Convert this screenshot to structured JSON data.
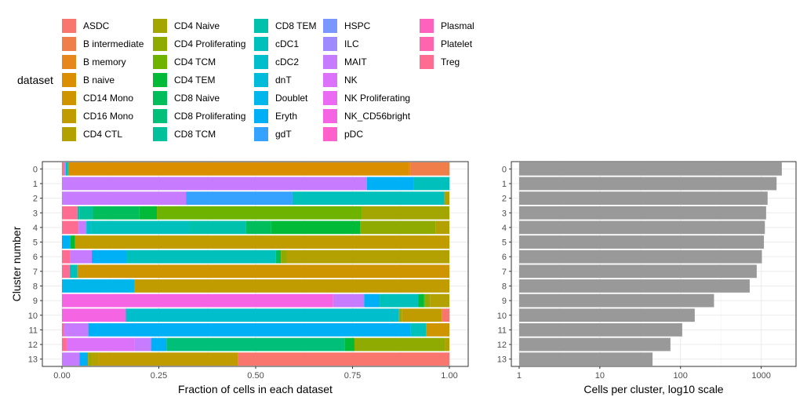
{
  "legend": {
    "title": "dataset",
    "entries": [
      {
        "label": "ASDC",
        "color": "#F8766D"
      },
      {
        "label": "B intermediate",
        "color": "#F07E4A"
      },
      {
        "label": "B memory",
        "color": "#E6861B"
      },
      {
        "label": "B naive",
        "color": "#DB8E00"
      },
      {
        "label": "CD14 Mono",
        "color": "#CF9500"
      },
      {
        "label": "CD16 Mono",
        "color": "#C19C00"
      },
      {
        "label": "CD4 CTL",
        "color": "#B2A100"
      },
      {
        "label": "CD4 Naive",
        "color": "#A3A500"
      },
      {
        "label": "CD4 Proliferating",
        "color": "#8FAA00"
      },
      {
        "label": "CD4 TCM",
        "color": "#6EB300"
      },
      {
        "label": "CD4 TEM",
        "color": "#00BA38"
      },
      {
        "label": "CD8 Naive",
        "color": "#00BD5C"
      },
      {
        "label": "CD8 Proliferating",
        "color": "#00C079"
      },
      {
        "label": "CD8 TCM",
        "color": "#00C19A"
      },
      {
        "label": "CD8 TEM",
        "color": "#00C1AB"
      },
      {
        "label": "cDC1",
        "color": "#00C0BB"
      },
      {
        "label": "cDC2",
        "color": "#00BECB"
      },
      {
        "label": "dnT",
        "color": "#00BBDA"
      },
      {
        "label": "Doublet",
        "color": "#00B6EB"
      },
      {
        "label": "Eryth",
        "color": "#00B0F6"
      },
      {
        "label": "gdT",
        "color": "#35A2FF"
      },
      {
        "label": "HSPC",
        "color": "#7997FF"
      },
      {
        "label": "ILC",
        "color": "#9F8AFF"
      },
      {
        "label": "MAIT",
        "color": "#C77CFF"
      },
      {
        "label": "NK",
        "color": "#DC71FA"
      },
      {
        "label": "NK Proliferating",
        "color": "#EA6AF1"
      },
      {
        "label": "NK_CD56bright",
        "color": "#F564E3"
      },
      {
        "label": "pDC",
        "color": "#FF61CC"
      },
      {
        "label": "Plasmal",
        "color": "#FF62BC"
      },
      {
        "label": "Platelet",
        "color": "#FF65AE"
      },
      {
        "label": "Treg",
        "color": "#FF6C91"
      }
    ]
  },
  "chart_data": [
    {
      "type": "bar",
      "orientation": "horizontal",
      "stacked": true,
      "xlabel": "Fraction of cells in each dataset",
      "ylabel": "Cluster number",
      "xlim": [
        0,
        1
      ],
      "xticks": [
        "0.00",
        "0.25",
        "0.50",
        "0.75",
        "1.00"
      ],
      "categories": [
        "0",
        "1",
        "2",
        "3",
        "4",
        "5",
        "6",
        "7",
        "8",
        "9",
        "10",
        "11",
        "12",
        "13"
      ],
      "grid": true,
      "rows": [
        {
          "cluster": "0",
          "segments": [
            {
              "d": "ASDC",
              "v": 0.004
            },
            {
              "d": "MAIT",
              "v": 0.006
            },
            {
              "d": "cDC1",
              "v": 0.006
            },
            {
              "d": "B naive",
              "v": 0.88
            },
            {
              "d": "B memory",
              "v": 0.004
            },
            {
              "d": "B intermediate",
              "v": 0.1
            }
          ]
        },
        {
          "cluster": "1",
          "segments": [
            {
              "d": "MAIT",
              "v": 0.787
            },
            {
              "d": "Eryth",
              "v": 0.12
            },
            {
              "d": "cDC1",
              "v": 0.093
            }
          ]
        },
        {
          "cluster": "2",
          "segments": [
            {
              "d": "MAIT",
              "v": 0.32
            },
            {
              "d": "gdT",
              "v": 0.275
            },
            {
              "d": "cDC1",
              "v": 0.392
            },
            {
              "d": "CD4 CTL",
              "v": 0.013
            }
          ]
        },
        {
          "cluster": "3",
          "segments": [
            {
              "d": "Treg",
              "v": 0.04
            },
            {
              "d": "CD8 TEM",
              "v": 0.005
            },
            {
              "d": "CD8 TCM",
              "v": 0.035
            },
            {
              "d": "CD8 Naive",
              "v": 0.12
            },
            {
              "d": "CD4 TEM",
              "v": 0.045
            },
            {
              "d": "CD4 TCM",
              "v": 0.53
            },
            {
              "d": "CD4 Naive",
              "v": 0.225
            }
          ]
        },
        {
          "cluster": "4",
          "segments": [
            {
              "d": "Treg",
              "v": 0.043
            },
            {
              "d": "MAIT",
              "v": 0.02
            },
            {
              "d": "cDC2",
              "v": 0.012
            },
            {
              "d": "cDC1",
              "v": 0.255
            },
            {
              "d": "CD8 TEM",
              "v": 0.145
            },
            {
              "d": "CD8 Naive",
              "v": 0.065
            },
            {
              "d": "CD4 TEM",
              "v": 0.23
            },
            {
              "d": "CD4 Proliferating",
              "v": 0.195
            },
            {
              "d": "CD4 CTL",
              "v": 0.035
            }
          ]
        },
        {
          "cluster": "5",
          "segments": [
            {
              "d": "Eryth",
              "v": 0.022
            },
            {
              "d": "CD4 TEM",
              "v": 0.012
            },
            {
              "d": "CD16 Mono",
              "v": 0.966
            }
          ]
        },
        {
          "cluster": "6",
          "segments": [
            {
              "d": "Treg",
              "v": 0.022
            },
            {
              "d": "MAIT",
              "v": 0.055
            },
            {
              "d": "Eryth",
              "v": 0.09
            },
            {
              "d": "cDC1",
              "v": 0.385
            },
            {
              "d": "CD8 Naive",
              "v": 0.013
            },
            {
              "d": "CD4 Proliferating",
              "v": 0.015
            },
            {
              "d": "CD4 CTL",
              "v": 0.42
            }
          ]
        },
        {
          "cluster": "7",
          "segments": [
            {
              "d": "Treg",
              "v": 0.02
            },
            {
              "d": "cDC1",
              "v": 0.02
            },
            {
              "d": "CD14 Mono",
              "v": 0.96
            }
          ]
        },
        {
          "cluster": "8",
          "segments": [
            {
              "d": "Doublet",
              "v": 0.188
            },
            {
              "d": "CD16 Mono",
              "v": 0.812
            }
          ]
        },
        {
          "cluster": "9",
          "segments": [
            {
              "d": "NK_CD56bright",
              "v": 0.7
            },
            {
              "d": "MAIT",
              "v": 0.08
            },
            {
              "d": "Eryth",
              "v": 0.04
            },
            {
              "d": "cDC1",
              "v": 0.1
            },
            {
              "d": "CD4 TEM",
              "v": 0.015
            },
            {
              "d": "CD4 Proliferating",
              "v": 0.015
            },
            {
              "d": "CD4 CTL",
              "v": 0.05
            }
          ]
        },
        {
          "cluster": "10",
          "segments": [
            {
              "d": "NK_CD56bright",
              "v": 0.165
            },
            {
              "d": "cDC2",
              "v": 0.705
            },
            {
              "d": "CD4 Naive",
              "v": 0.008
            },
            {
              "d": "CD16 Mono",
              "v": 0.102
            },
            {
              "d": "ASDC",
              "v": 0.02
            }
          ]
        },
        {
          "cluster": "11",
          "segments": [
            {
              "d": "Treg",
              "v": 0.005
            },
            {
              "d": "MAIT",
              "v": 0.063
            },
            {
              "d": "Eryth",
              "v": 0.832
            },
            {
              "d": "cDC1",
              "v": 0.04
            },
            {
              "d": "CD14 Mono",
              "v": 0.06
            }
          ]
        },
        {
          "cluster": "12",
          "segments": [
            {
              "d": "Treg",
              "v": 0.012
            },
            {
              "d": "NK",
              "v": 0.175
            },
            {
              "d": "MAIT",
              "v": 0.043
            },
            {
              "d": "Eryth",
              "v": 0.04
            },
            {
              "d": "CD8 Proliferating",
              "v": 0.46
            },
            {
              "d": "CD4 TEM",
              "v": 0.025
            },
            {
              "d": "CD4 Proliferating",
              "v": 0.233
            },
            {
              "d": "CD4 CTL",
              "v": 0.012
            }
          ]
        },
        {
          "cluster": "13",
          "segments": [
            {
              "d": "MAIT",
              "v": 0.045
            },
            {
              "d": "Eryth",
              "v": 0.022
            },
            {
              "d": "CD4 Naive",
              "v": 0.01
            },
            {
              "d": "CD4 CTL",
              "v": 0.018
            },
            {
              "d": "CD16 Mono",
              "v": 0.36
            },
            {
              "d": "ASDC",
              "v": 0.545
            }
          ]
        }
      ]
    },
    {
      "type": "bar",
      "orientation": "horizontal",
      "xlabel": "Cells per cluster, log10 scale",
      "xscale": "log10",
      "xlim": [
        0.8,
        2700
      ],
      "xticks": [
        {
          "value": 1,
          "label": "1"
        },
        {
          "value": 10,
          "label": "10"
        },
        {
          "value": 100,
          "label": "100"
        },
        {
          "value": 1000,
          "label": "1000"
        }
      ],
      "categories": [
        "0",
        "1",
        "2",
        "3",
        "4",
        "5",
        "6",
        "7",
        "8",
        "9",
        "10",
        "11",
        "12",
        "13"
      ],
      "values": [
        1800,
        1550,
        1200,
        1150,
        1110,
        1080,
        1020,
        880,
        720,
        260,
        150,
        105,
        75,
        45
      ],
      "bar_color": "#999999",
      "grid": true
    }
  ]
}
